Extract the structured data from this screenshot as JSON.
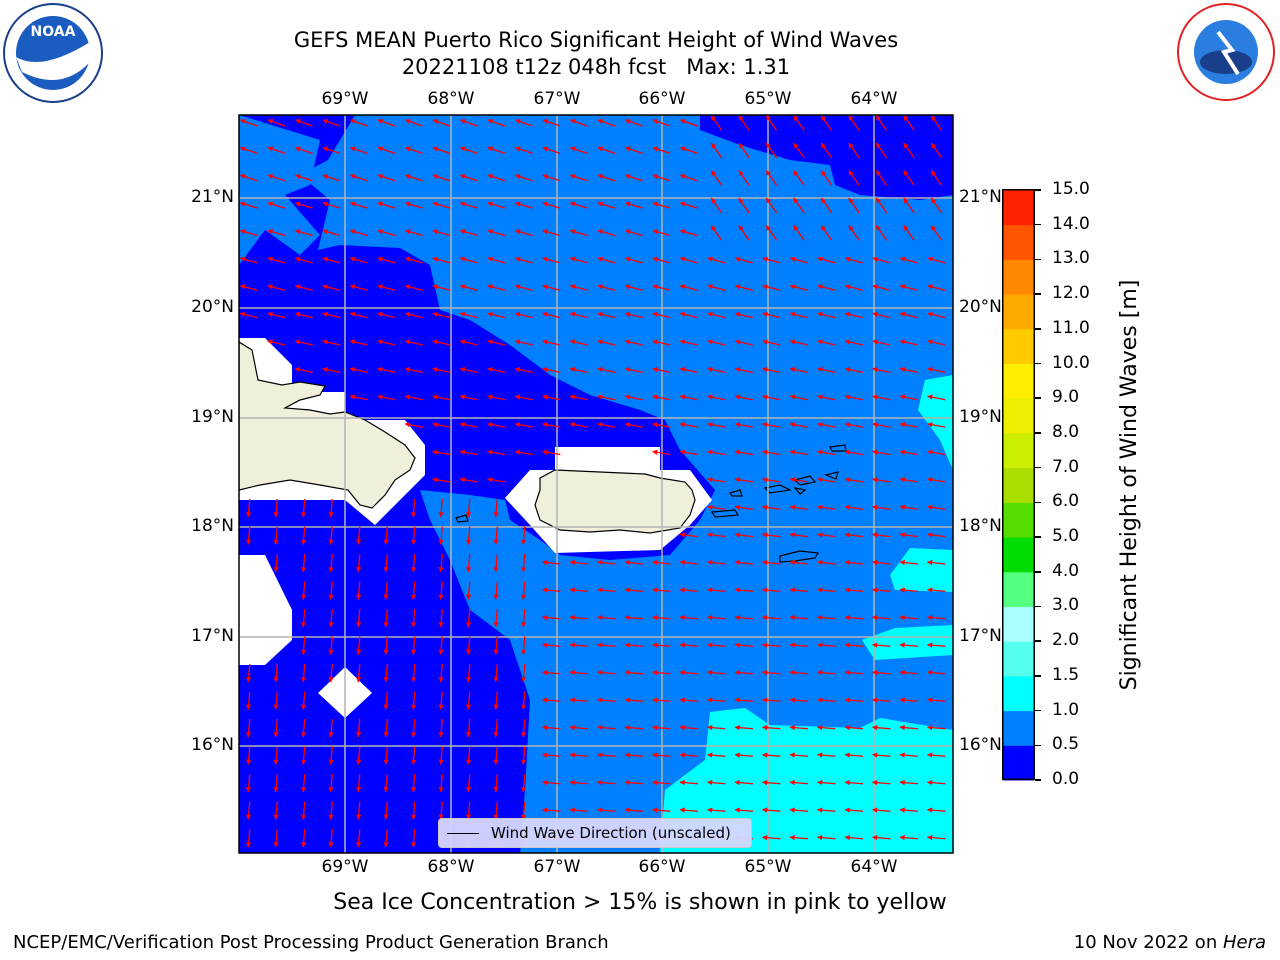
{
  "header": {
    "title_line1": "GEFS MEAN Puerto Rico Significant Height of Wind Waves",
    "title_line2": "20221108 t12z 048h fcst   Max: 1.31"
  },
  "logos": {
    "left": "noaa-logo",
    "right": "national-weather-service-logo"
  },
  "map": {
    "lon_labels": [
      "69°W",
      "68°W",
      "67°W",
      "66°W",
      "65°W",
      "64°W"
    ],
    "lat_labels": [
      "21°N",
      "20°N",
      "19°N",
      "18°N",
      "17°N",
      "16°N"
    ],
    "legend_label": "Wind Wave Direction (unscaled)",
    "colors": {
      "ocean_0_0_5": "#0000ff",
      "ocean_0_5_1_0": "#0080ff",
      "ocean_1_0_1_5": "#00ffff",
      "land": "#efefdb",
      "arrow": "#ff0000",
      "grid": "#b4b4b4"
    }
  },
  "colorbar": {
    "label": "Significant Height of Wind Waves [m]",
    "ticks": [
      "0.0",
      "0.5",
      "1.0",
      "1.5",
      "2.0",
      "3.0",
      "4.0",
      "5.0",
      "6.0",
      "7.0",
      "8.0",
      "9.0",
      "10.0",
      "11.0",
      "12.0",
      "13.0",
      "14.0",
      "15.0"
    ],
    "colors": [
      "#0000ff",
      "#0080ff",
      "#00ffff",
      "#55ffee",
      "#aaffff",
      "#55ff80",
      "#00dd00",
      "#55dd00",
      "#aadd00",
      "#ccee00",
      "#eeee00",
      "#ffee00",
      "#ffcc00",
      "#ffaa00",
      "#ff8800",
      "#ff5500",
      "#ff2200"
    ]
  },
  "note": "Sea Ice Concentration > 15% is shown in pink to yellow",
  "footer": {
    "left": "NCEP/EMC/Verification Post Processing Product Generation Branch",
    "right_date": "10 Nov 2022 on ",
    "right_machine": "Hera"
  }
}
